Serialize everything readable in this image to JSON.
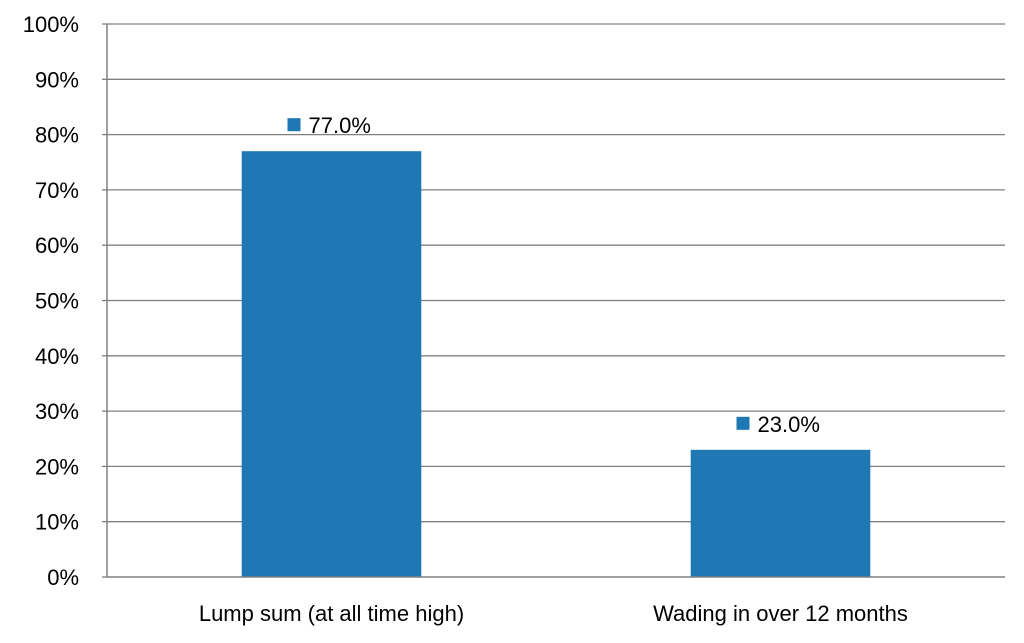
{
  "chart_data": {
    "type": "bar",
    "title": "",
    "xlabel": "",
    "ylabel": "",
    "categories": [
      "Lump sum (at all time high)",
      "Wading in over 12 months"
    ],
    "values": [
      77.0,
      23.0
    ],
    "data_labels": [
      "77.0%",
      "23.0%"
    ],
    "ylim": [
      0,
      100
    ],
    "yticks": [
      0,
      10,
      20,
      30,
      40,
      50,
      60,
      70,
      80,
      90,
      100
    ],
    "ytick_labels": [
      "0%",
      "10%",
      "20%",
      "30%",
      "40%",
      "50%",
      "60%",
      "70%",
      "80%",
      "90%",
      "100%"
    ],
    "grid": true,
    "legend": "none",
    "colors": {
      "bar": "#1f77b4",
      "grid": "#808080",
      "axis": "#808080",
      "text": "#000000"
    }
  }
}
